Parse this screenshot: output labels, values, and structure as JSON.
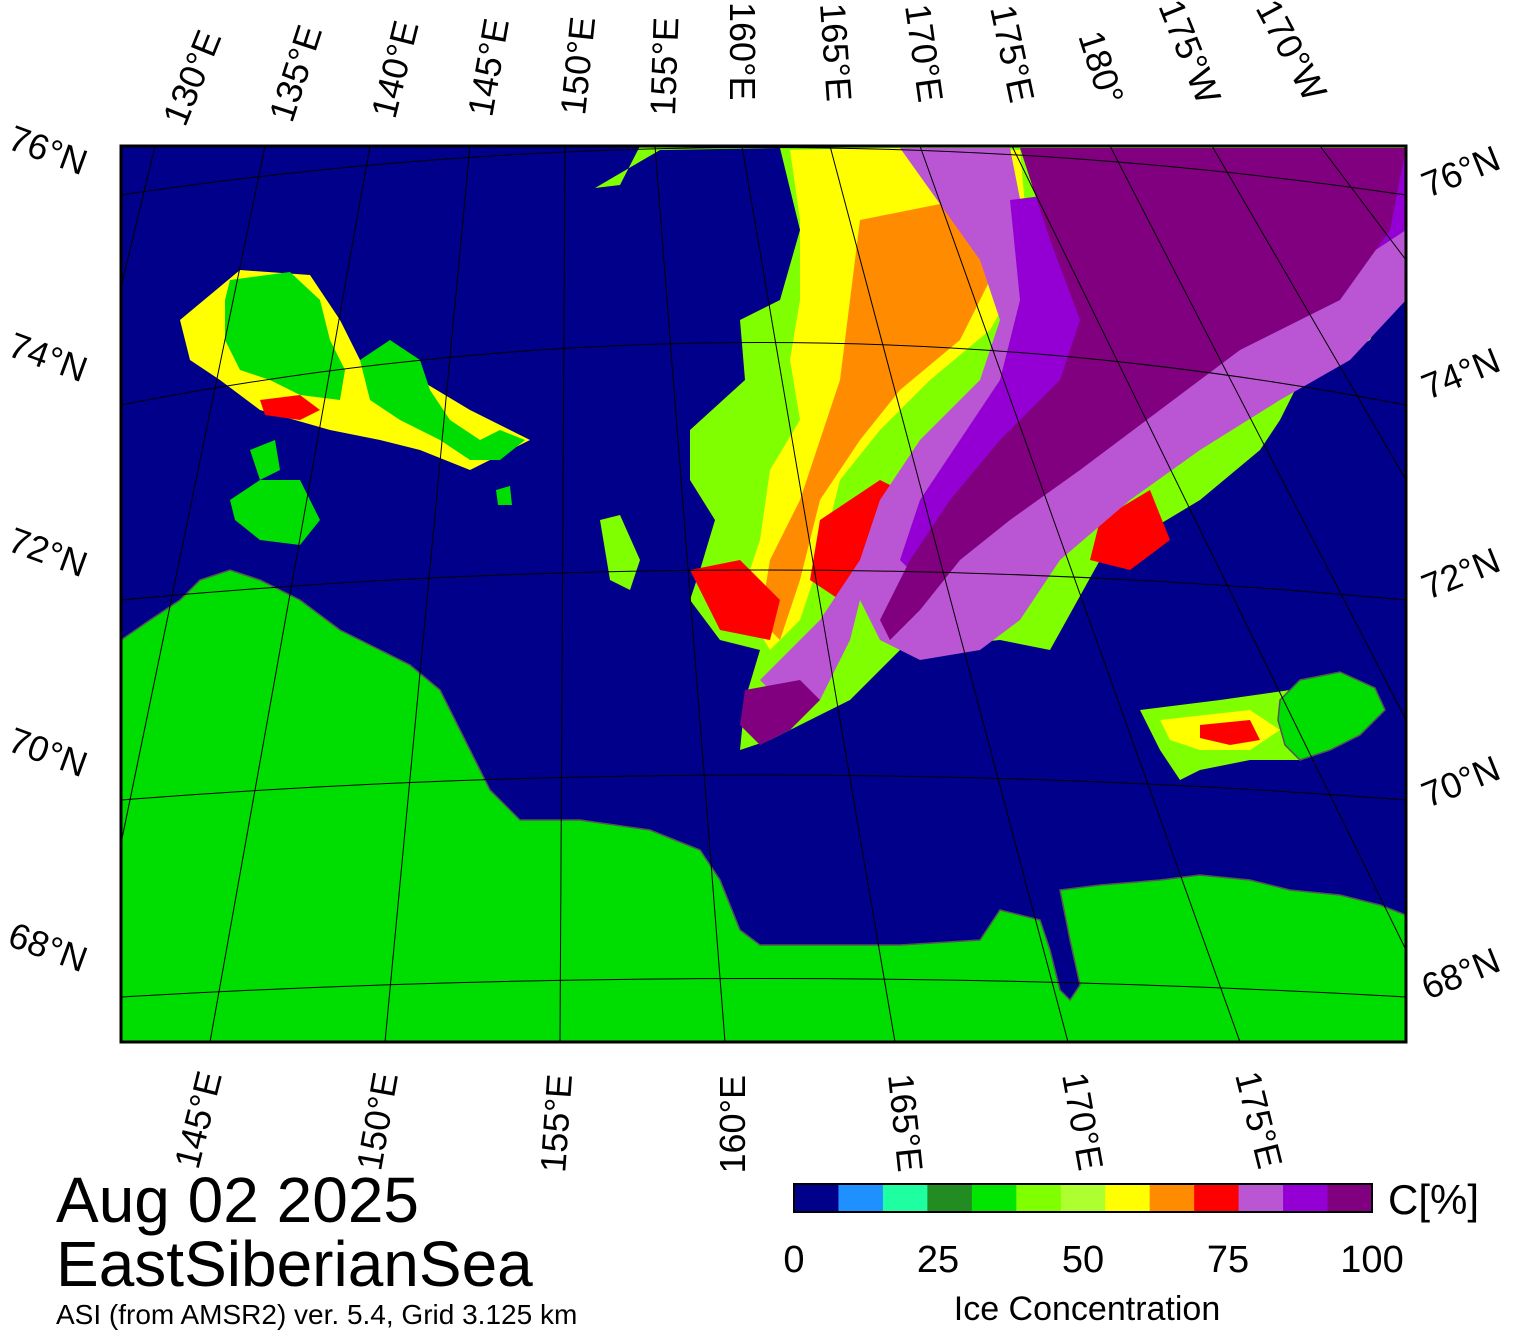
{
  "map": {
    "date": "Aug 02 2025",
    "region": "EastSiberianSea",
    "source": "ASI (from AMSR2) ver. 5.4,  Grid 3.125 km",
    "top_lon_labels": [
      "130°E",
      "135°E",
      "140°E",
      "145°E",
      "150°E",
      "155°E",
      "160°E",
      "165°E",
      "170°E",
      "175°E",
      "180°",
      "175°W",
      "170°W"
    ],
    "bottom_lon_labels": [
      "145°E",
      "150°E",
      "155°E",
      "160°E",
      "165°E",
      "170°E",
      "175°E"
    ],
    "left_lat_labels": [
      "76°N",
      "74°N",
      "72°N",
      "70°N",
      "68°N"
    ],
    "right_lat_labels": [
      "76°N",
      "74°N",
      "72°N",
      "70°N",
      "68°N"
    ],
    "colors": {
      "ocean": "#00008b",
      "land": "#00dd00",
      "land_gray": "#888888",
      "grid": "#000000"
    },
    "features": [
      "ice-pack",
      "new-siberian-islands",
      "wrangel-island",
      "siberian-coast"
    ]
  },
  "legend": {
    "title": "Ice Concentration",
    "unit": "C[%]",
    "ticks": [
      "0",
      "25",
      "50",
      "75",
      "100"
    ],
    "colors": [
      "#00008b",
      "#1e90ff",
      "#1dffa0",
      "#228b22",
      "#00e600",
      "#7fff00",
      "#adff2f",
      "#ffff00",
      "#ff8c00",
      "#ff0000",
      "#ba55d3",
      "#9400d3",
      "#800080"
    ]
  }
}
